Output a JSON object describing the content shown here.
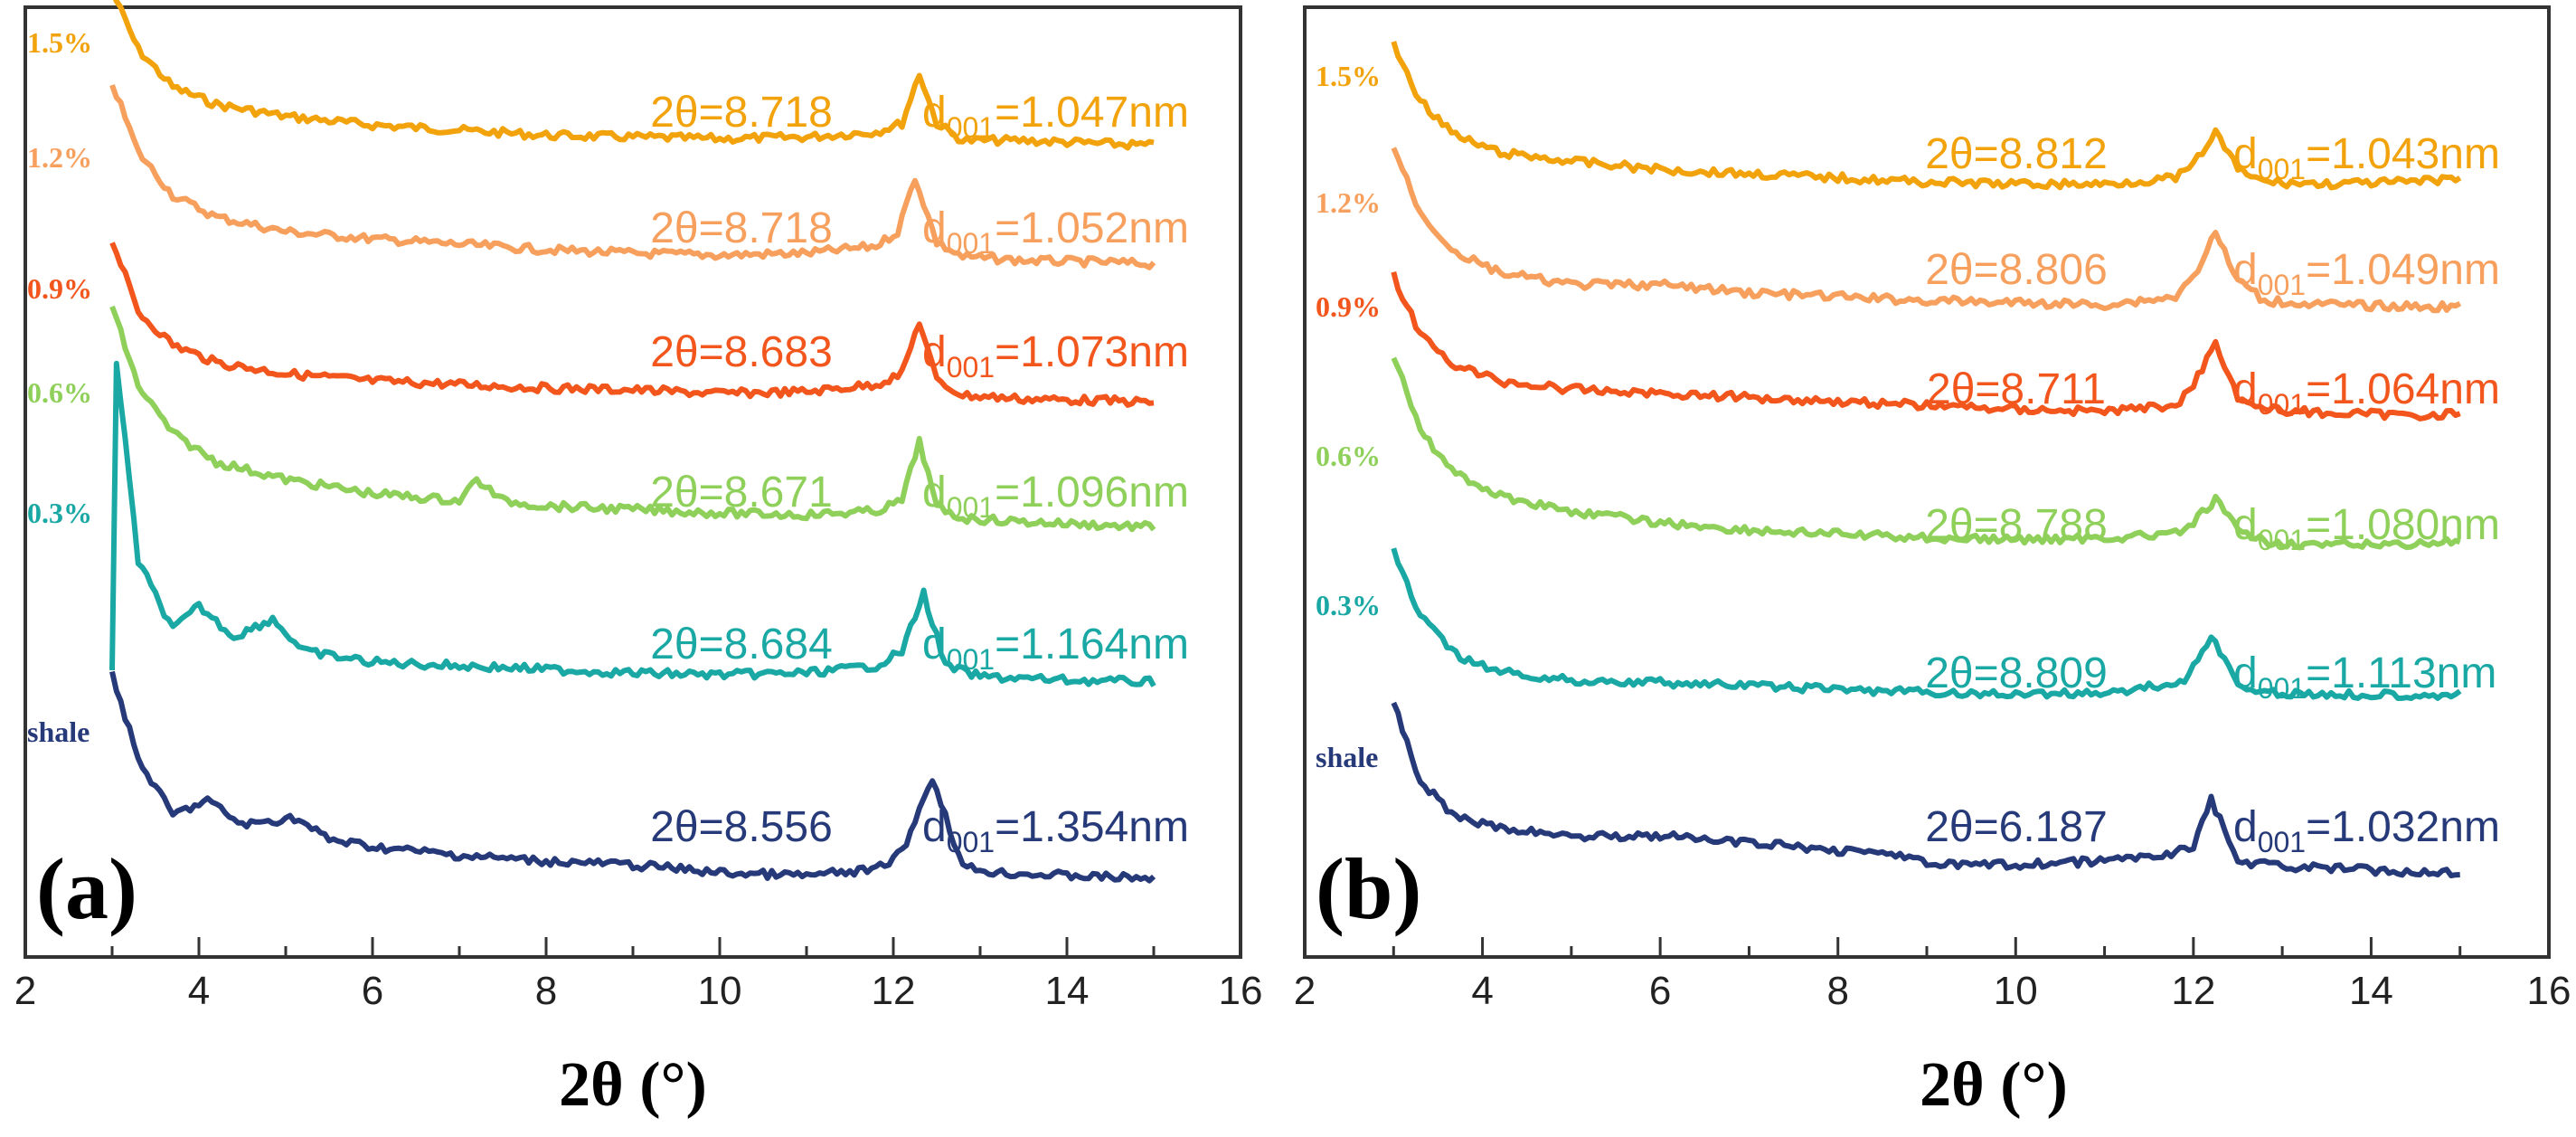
{
  "figure": {
    "panels": [
      {
        "label": "(a)",
        "x_label": "2θ (°)",
        "x_ticks": [
          "2",
          "4",
          "6",
          "8",
          "10",
          "12",
          "14",
          "16"
        ],
        "series": [
          {
            "name": "1.5%",
            "color": "#f2a20a",
            "angle": "2θ=8.718",
            "d_main": "d",
            "d_sub": "001",
            "d_val": "=1.047nm"
          },
          {
            "name": "1.2%",
            "color": "#f7a05e",
            "angle": "2θ=8.718",
            "d_main": "d",
            "d_sub": "001",
            "d_val": "=1.052nm"
          },
          {
            "name": "0.9%",
            "color": "#f2561c",
            "angle": "2θ=8.683",
            "d_main": "d",
            "d_sub": "001",
            "d_val": "=1.073nm"
          },
          {
            "name": "0.6%",
            "color": "#8fd05a",
            "angle": "2θ=8.671",
            "d_main": "d",
            "d_sub": "001",
            "d_val": "=1.096nm"
          },
          {
            "name": "0.3%",
            "color": "#1aa8a4",
            "angle": "2θ=8.684",
            "d_main": "d",
            "d_sub": "001",
            "d_val": "=1.164nm"
          },
          {
            "name": "shale",
            "color": "#263a7a",
            "angle": "2θ=8.556",
            "d_main": "d",
            "d_sub": "001",
            "d_val": "=1.354nm"
          }
        ]
      },
      {
        "label": "(b)",
        "x_label": "2θ (°)",
        "x_ticks": [
          "2",
          "4",
          "6",
          "8",
          "10",
          "12",
          "14",
          "16"
        ],
        "series": [
          {
            "name": "1.5%",
            "color": "#f2a20a",
            "angle": "2θ=8.812",
            "d_main": "d",
            "d_sub": "001",
            "d_val": "=1.043nm"
          },
          {
            "name": "1.2%",
            "color": "#f7a05e",
            "angle": "2θ=8.806",
            "d_main": "d",
            "d_sub": "001",
            "d_val": "=1.049nm"
          },
          {
            "name": "0.9%",
            "color": "#f2561c",
            "angle": "2θ=8.711",
            "d_main": "d",
            "d_sub": "001",
            "d_val": "=1.064nm"
          },
          {
            "name": "0.6%",
            "color": "#8fd05a",
            "angle": "2θ=8.788",
            "d_main": "d",
            "d_sub": "001",
            "d_val": "=1.080nm"
          },
          {
            "name": "0.3%",
            "color": "#1aa8a4",
            "angle": "2θ=8.809",
            "d_main": "d",
            "d_sub": "001",
            "d_val": "=1.113nm"
          },
          {
            "name": "shale",
            "color": "#263a7a",
            "angle": "2θ=6.187",
            "d_main": "d",
            "d_sub": "001",
            "d_val": "=1.032nm"
          }
        ]
      }
    ]
  },
  "chart_data": [
    {
      "type": "line",
      "panel": "(a)",
      "xlabel": "2θ (°)",
      "ylabel": "",
      "xlim": [
        2,
        16
      ],
      "x_ticks": [
        2,
        4,
        6,
        8,
        10,
        12,
        14,
        16
      ],
      "y_axis": "stacked intensity (offset, a.u., no scale shown)",
      "series": [
        {
          "name": "1.5%",
          "offset": 5,
          "x": [
            3.0,
            3.3,
            3.7,
            4.2,
            5,
            6,
            7,
            8,
            9,
            10,
            11,
            11.8,
            12.1,
            12.3,
            12.5,
            12.8,
            13.5,
            14.5,
            15.0
          ],
          "values": [
            1.0,
            0.66,
            0.44,
            0.34,
            0.27,
            0.22,
            0.19,
            0.16,
            0.15,
            0.14,
            0.15,
            0.18,
            0.23,
            0.52,
            0.23,
            0.13,
            0.13,
            0.11,
            0.1
          ]
        },
        {
          "name": "1.2%",
          "offset": 4,
          "x": [
            3.0,
            3.3,
            3.7,
            4.2,
            5,
            6,
            7,
            8,
            9,
            10,
            11,
            11.8,
            12.05,
            12.25,
            12.5,
            12.8,
            13.5,
            14.5,
            15.0
          ],
          "values": [
            1.1,
            0.72,
            0.48,
            0.36,
            0.28,
            0.24,
            0.21,
            0.18,
            0.16,
            0.15,
            0.16,
            0.2,
            0.28,
            0.58,
            0.22,
            0.14,
            0.12,
            0.11,
            0.1
          ]
        },
        {
          "name": "0.9%",
          "offset": 3,
          "x": [
            3.0,
            3.3,
            3.7,
            4.2,
            5,
            6,
            7,
            8,
            9,
            10,
            11,
            11.8,
            12.1,
            12.3,
            12.5,
            12.8,
            13.5,
            14.5,
            15.0
          ],
          "values": [
            1.0,
            0.6,
            0.42,
            0.32,
            0.26,
            0.22,
            0.2,
            0.18,
            0.17,
            0.15,
            0.16,
            0.2,
            0.26,
            0.55,
            0.22,
            0.14,
            0.12,
            0.11,
            0.1
          ]
        },
        {
          "name": "0.6%",
          "offset": 2,
          "x": [
            3.0,
            3.3,
            3.7,
            4.2,
            5,
            6,
            7,
            7.2,
            7.5,
            8,
            9,
            10,
            11,
            11.8,
            12.1,
            12.3,
            12.5,
            12.8,
            13.5,
            14.5,
            15.0
          ],
          "values": [
            1.4,
            0.95,
            0.68,
            0.52,
            0.42,
            0.34,
            0.3,
            0.42,
            0.3,
            0.27,
            0.25,
            0.23,
            0.22,
            0.24,
            0.3,
            0.64,
            0.26,
            0.2,
            0.18,
            0.16,
            0.15
          ]
        },
        {
          "name": "0.3%",
          "offset": 1,
          "x": [
            3.0,
            3.05,
            3.3,
            3.7,
            4.0,
            4.4,
            4.85,
            5.2,
            6,
            7,
            8,
            9,
            10,
            11,
            11.8,
            12.1,
            12.35,
            12.6,
            13,
            14,
            15.0
          ],
          "values": [
            0.2,
            1.9,
            0.8,
            0.42,
            0.55,
            0.38,
            0.48,
            0.3,
            0.24,
            0.22,
            0.2,
            0.18,
            0.17,
            0.18,
            0.22,
            0.3,
            0.62,
            0.22,
            0.16,
            0.14,
            0.13
          ]
        },
        {
          "name": "shale",
          "offset": 0,
          "x": [
            3.0,
            3.3,
            3.7,
            4.1,
            4.5,
            5.1,
            5.5,
            6,
            7,
            8,
            8.8,
            9.3,
            10,
            11,
            11.8,
            12.1,
            12.45,
            12.8,
            13.2,
            14,
            15.0
          ],
          "values": [
            1.6,
            1.0,
            0.62,
            0.72,
            0.55,
            0.6,
            0.45,
            0.4,
            0.34,
            0.3,
            0.28,
            0.26,
            0.22,
            0.2,
            0.24,
            0.36,
            0.88,
            0.26,
            0.22,
            0.2,
            0.18
          ]
        }
      ],
      "annotations": [
        {
          "series": "1.5%",
          "text": "2θ=8.718",
          "d001": "1.047nm"
        },
        {
          "series": "1.2%",
          "text": "2θ=8.718",
          "d001": "1.052nm"
        },
        {
          "series": "0.9%",
          "text": "2θ=8.683",
          "d001": "1.073nm"
        },
        {
          "series": "0.6%",
          "text": "2θ=8.671",
          "d001": "1.096nm"
        },
        {
          "series": "0.3%",
          "text": "2θ=8.684",
          "d001": "1.164nm"
        },
        {
          "series": "shale",
          "text": "2θ=8.556",
          "d001": "1.354nm"
        }
      ]
    },
    {
      "type": "line",
      "panel": "(b)",
      "xlabel": "2θ (°)",
      "ylabel": "",
      "xlim": [
        2,
        16
      ],
      "x_ticks": [
        2,
        4,
        6,
        8,
        10,
        12,
        14,
        16
      ],
      "y_axis": "stacked intensity (offset, a.u., no scale shown)",
      "series": [
        {
          "name": "1.5%",
          "offset": 5,
          "x": [
            3.0,
            3.3,
            3.7,
            4.2,
            5,
            6,
            7,
            8,
            9,
            10,
            11,
            11.8,
            12.0,
            12.25,
            12.5,
            12.8,
            13.5,
            14.5,
            15.0
          ],
          "values": [
            0.82,
            0.55,
            0.38,
            0.3,
            0.26,
            0.22,
            0.2,
            0.18,
            0.16,
            0.15,
            0.15,
            0.18,
            0.24,
            0.4,
            0.22,
            0.16,
            0.15,
            0.16,
            0.18
          ]
        },
        {
          "name": "1.2%",
          "offset": 4,
          "x": [
            3.0,
            3.3,
            3.7,
            4.2,
            5,
            6,
            7,
            8,
            9,
            10,
            11,
            11.8,
            12.0,
            12.25,
            12.5,
            12.8,
            13.5,
            14.5,
            15.0
          ],
          "values": [
            0.95,
            0.62,
            0.42,
            0.32,
            0.26,
            0.26,
            0.22,
            0.2,
            0.18,
            0.17,
            0.16,
            0.2,
            0.3,
            0.52,
            0.28,
            0.18,
            0.16,
            0.15,
            0.15
          ]
        },
        {
          "name": "0.9%",
          "offset": 3,
          "x": [
            3.0,
            3.3,
            3.7,
            4.2,
            5,
            6,
            7,
            8,
            9,
            10,
            11,
            11.8,
            12.0,
            12.25,
            12.5,
            12.8,
            13.5,
            14.5,
            15.0
          ],
          "values": [
            0.85,
            0.55,
            0.4,
            0.32,
            0.28,
            0.26,
            0.24,
            0.22,
            0.2,
            0.18,
            0.17,
            0.2,
            0.3,
            0.52,
            0.24,
            0.18,
            0.16,
            0.15,
            0.16
          ]
        },
        {
          "name": "0.6%",
          "offset": 2,
          "x": [
            3.0,
            3.3,
            3.7,
            4.2,
            5,
            6,
            7,
            8,
            9,
            10,
            11,
            11.8,
            12.0,
            12.25,
            12.5,
            12.8,
            13.5,
            14.5,
            15.0
          ],
          "values": [
            1.2,
            0.8,
            0.58,
            0.46,
            0.38,
            0.32,
            0.28,
            0.26,
            0.24,
            0.23,
            0.24,
            0.26,
            0.32,
            0.44,
            0.28,
            0.22,
            0.2,
            0.21,
            0.22
          ]
        },
        {
          "name": "0.3%",
          "offset": 1,
          "x": [
            3.0,
            3.3,
            3.7,
            4.2,
            5,
            6,
            7,
            8,
            9,
            10,
            11,
            11.6,
            11.9,
            12.2,
            12.5,
            12.8,
            13.5,
            14.5,
            15.0
          ],
          "values": [
            1.0,
            0.62,
            0.4,
            0.3,
            0.25,
            0.24,
            0.22,
            0.2,
            0.18,
            0.17,
            0.18,
            0.22,
            0.24,
            0.52,
            0.22,
            0.18,
            0.17,
            0.17,
            0.17
          ]
        },
        {
          "name": "shale",
          "offset": 0,
          "x": [
            3.0,
            3.3,
            3.7,
            4.2,
            5,
            6,
            7,
            8,
            8.7,
            9,
            10,
            11,
            11.7,
            12.0,
            12.2,
            12.5,
            12.8,
            13.5,
            14.5,
            15.0
          ],
          "values": [
            1.05,
            0.62,
            0.42,
            0.36,
            0.32,
            0.32,
            0.28,
            0.24,
            0.22,
            0.16,
            0.16,
            0.18,
            0.22,
            0.26,
            0.52,
            0.18,
            0.16,
            0.14,
            0.12,
            0.12
          ]
        }
      ],
      "annotations": [
        {
          "series": "1.5%",
          "text": "2θ=8.812",
          "d001": "1.043nm"
        },
        {
          "series": "1.2%",
          "text": "2θ=8.806",
          "d001": "1.049nm"
        },
        {
          "series": "0.9%",
          "text": "2θ=8.711",
          "d001": "1.064nm"
        },
        {
          "series": "0.6%",
          "text": "2θ=8.788",
          "d001": "1.080nm"
        },
        {
          "series": "0.3%",
          "text": "2θ=8.809",
          "d001": "1.113nm"
        },
        {
          "series": "shale",
          "text": "2θ=6.187",
          "d001": "1.032nm"
        }
      ]
    }
  ]
}
